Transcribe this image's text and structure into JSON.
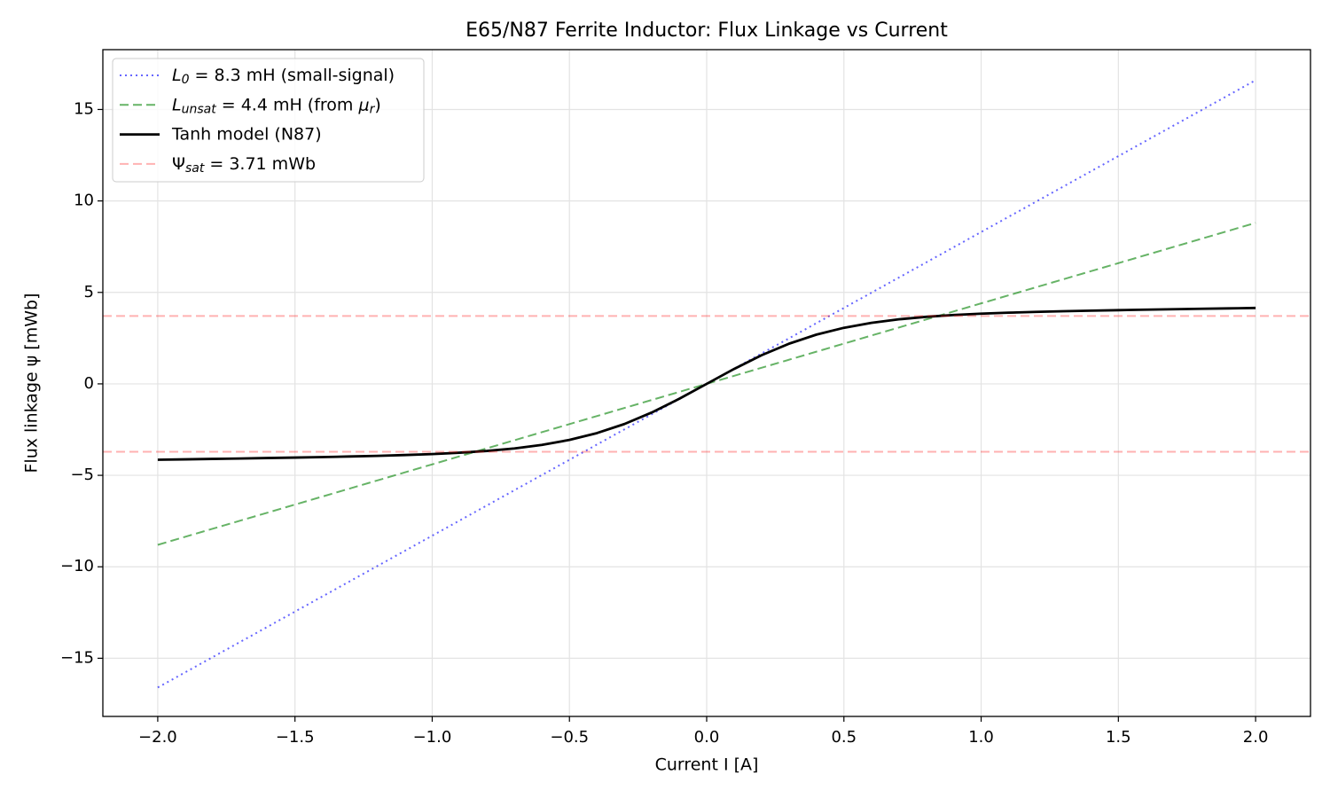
{
  "chart_data": {
    "type": "line",
    "title": "E65/N87 Ferrite Inductor: Flux Linkage vs Current",
    "xlabel": "Current I [A]",
    "ylabel": "Flux linkage ψ [mWb]",
    "xlim": [
      -2.2,
      2.2
    ],
    "ylim": [
      -18.18,
      18.27
    ],
    "xticks": [
      {
        "value": -2,
        "label": "−2.0"
      },
      {
        "value": -1.5,
        "label": "−1.5"
      },
      {
        "value": -1,
        "label": "−1.0"
      },
      {
        "value": -0.5,
        "label": "−0.5"
      },
      {
        "value": 0,
        "label": "0.0"
      },
      {
        "value": 0.5,
        "label": "0.5"
      },
      {
        "value": 1,
        "label": "1.0"
      },
      {
        "value": 1.5,
        "label": "1.5"
      },
      {
        "value": 2,
        "label": "2.0"
      }
    ],
    "yticks": [
      {
        "value": -15,
        "label": "−15"
      },
      {
        "value": -10,
        "label": "−10"
      },
      {
        "value": -5,
        "label": "−5"
      },
      0,
      5,
      10,
      15
    ],
    "grid": true,
    "legend": "upper left",
    "series": [
      {
        "name": [
          {
            "text": "L",
            "style": "italic"
          },
          {
            "text": "0",
            "style": "sub"
          },
          {
            "text": " = 8.3 mH (small-signal)",
            "style": "normal"
          }
        ],
        "color": "#0000ff",
        "opacity": 0.6,
        "dash": "dotted",
        "width": 2,
        "x": [
          -2,
          2
        ],
        "values": [
          -16.6,
          16.6
        ]
      },
      {
        "name": [
          {
            "text": "L",
            "style": "italic"
          },
          {
            "text": "unsat",
            "style": "sub"
          },
          {
            "text": " = 4.4 mH (from ",
            "style": "normal"
          },
          {
            "text": "μ",
            "style": "italic"
          },
          {
            "text": "r",
            "style": "sub"
          },
          {
            "text": ")",
            "style": "normal"
          }
        ],
        "color": "#008000",
        "opacity": 0.6,
        "dash": "dashed",
        "width": 2,
        "x": [
          -2,
          2
        ],
        "values": [
          -8.8,
          8.8
        ]
      },
      {
        "name": [
          {
            "text": "Tanh model (N87)",
            "style": "normal"
          }
        ],
        "color": "#000000",
        "opacity": 1,
        "dash": "solid",
        "width": 2.8,
        "x": [
          -2,
          -1.9,
          -1.8,
          -1.7,
          -1.6,
          -1.5,
          -1.4,
          -1.3,
          -1.2,
          -1.1,
          -1,
          -0.9,
          -0.8,
          -0.7,
          -0.6,
          -0.5,
          -0.4,
          -0.3,
          -0.2,
          -0.1,
          0,
          0.1,
          0.2,
          0.3,
          0.4,
          0.5,
          0.6,
          0.7,
          0.8,
          0.9,
          1,
          1.1,
          1.2,
          1.3,
          1.4,
          1.5,
          1.6,
          1.7,
          1.8,
          1.9,
          2
        ],
        "values": [
          -4.149,
          -4.126,
          -4.103,
          -4.08,
          -4.055,
          -4.029,
          -4.001,
          -3.97,
          -3.934,
          -3.891,
          -3.837,
          -3.764,
          -3.666,
          -3.529,
          -3.335,
          -3.065,
          -2.692,
          -2.196,
          -1.565,
          -0.817,
          0,
          0.817,
          1.565,
          2.196,
          2.692,
          3.065,
          3.335,
          3.529,
          3.666,
          3.764,
          3.837,
          3.891,
          3.934,
          3.97,
          4.001,
          4.029,
          4.055,
          4.08,
          4.103,
          4.126,
          4.149
        ]
      },
      {
        "name": [
          {
            "text": "Ψ",
            "style": "normal"
          },
          {
            "text": "sat",
            "style": "sub"
          },
          {
            "text": " = 3.71 mWb",
            "style": "normal"
          }
        ],
        "color": "#ff0000",
        "opacity": 0.3,
        "dash": "dashed",
        "width": 2,
        "kind": "hline",
        "values": [
          3.71,
          -3.71
        ]
      }
    ]
  }
}
